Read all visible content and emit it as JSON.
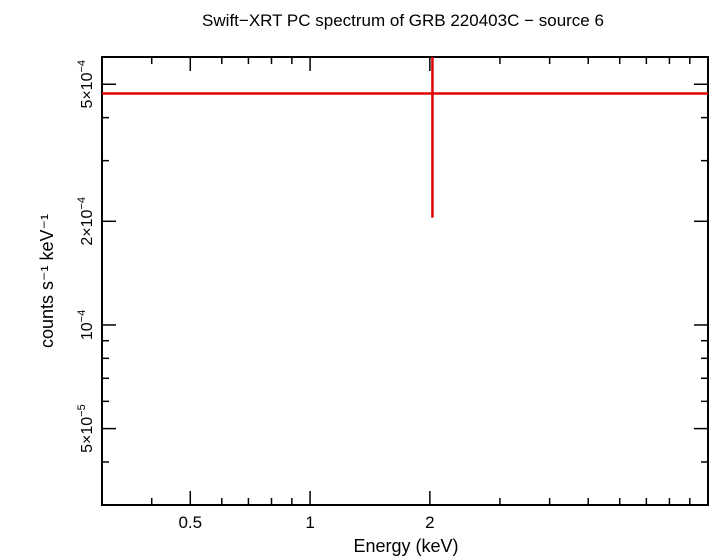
{
  "chart_data": {
    "type": "scatter",
    "title": "Swift−XRT PC spectrum of GRB 220403C − source 6",
    "xlabel": "Energy (keV)",
    "ylabel": "counts s⁻¹ keV⁻¹",
    "x_scale": "log",
    "y_scale": "log",
    "xlim": [
      0.3,
      10
    ],
    "ylim": [
      3e-05,
      0.0006
    ],
    "x_ticks": [
      {
        "value": 0.5,
        "label": "0.5"
      },
      {
        "value": 1,
        "label": "1"
      },
      {
        "value": 2,
        "label": "2"
      }
    ],
    "y_ticks": [
      {
        "value": 5e-05,
        "mant": "5×10",
        "exp": "−5"
      },
      {
        "value": 0.0001,
        "mant": "10",
        "exp": "−4"
      },
      {
        "value": 0.0002,
        "mant": "2×10",
        "exp": "−4"
      },
      {
        "value": 0.0005,
        "mant": "5×10",
        "exp": "−4"
      }
    ],
    "grid": false,
    "series": [
      {
        "color": "#e00000",
        "points": [
          {
            "x": 2.03,
            "x_low": 0.3,
            "x_high": 10,
            "y": 0.00047,
            "y_low": 0.000205,
            "y_high": 0.0006
          }
        ]
      }
    ]
  }
}
